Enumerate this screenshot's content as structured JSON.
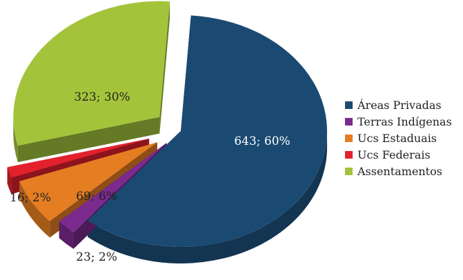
{
  "chart_data": {
    "type": "pie",
    "title": "",
    "categories": [
      "Áreas Privadas",
      "Terras Indígenas",
      "Ucs Estaduais",
      "Ucs Federais",
      "Assentamentos"
    ],
    "values": [
      643,
      23,
      69,
      16,
      323
    ],
    "percent_labels": [
      "60%",
      "2%",
      "6%",
      "2%",
      "30%"
    ],
    "data_labels": [
      "643; 60%",
      "23; 2%",
      "69; 6%",
      "16; 2%",
      "323; 30%"
    ],
    "colors": [
      "#1a4a72",
      "#7b2a8e",
      "#e57e22",
      "#e3212d",
      "#a3c43a"
    ],
    "exploded": true,
    "style": "3d",
    "legend_position": "right"
  },
  "legend": {
    "items": [
      {
        "label": "Áreas Privadas",
        "color": "#1a4a72"
      },
      {
        "label": "Terras Indígenas",
        "color": "#7b2a8e"
      },
      {
        "label": "Ucs Estaduais",
        "color": "#e57e22"
      },
      {
        "label": "Ucs Federais",
        "color": "#e3212d"
      },
      {
        "label": "Assentamentos",
        "color": "#a3c43a"
      }
    ]
  }
}
